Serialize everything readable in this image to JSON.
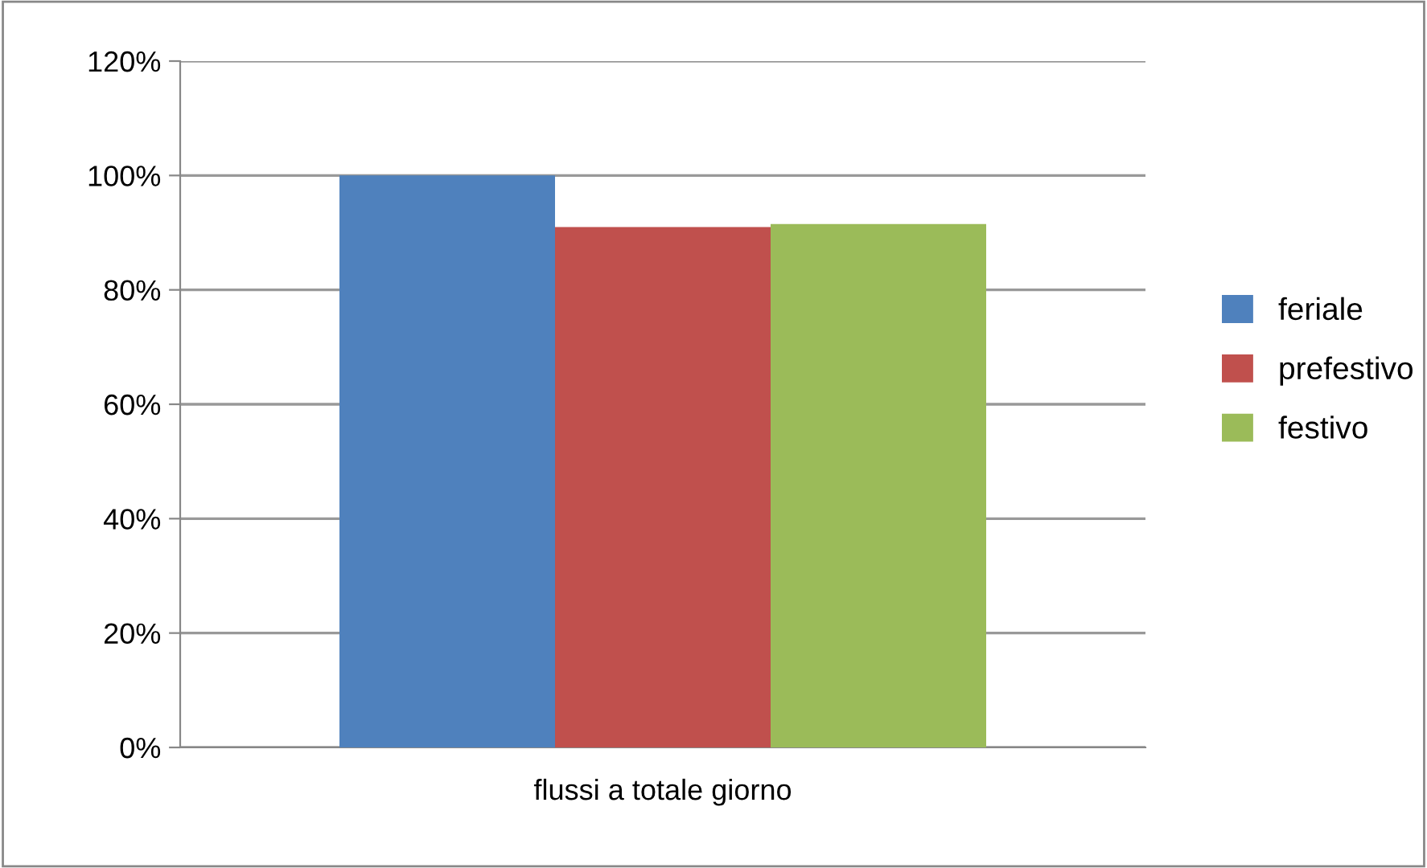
{
  "chart_data": {
    "type": "bar",
    "categories": [
      "flussi a totale giorno"
    ],
    "series": [
      {
        "name": "feriale",
        "color": "#4f81bd",
        "values": [
          100
        ]
      },
      {
        "name": "prefestivo",
        "color": "#c0504d",
        "values": [
          91
        ]
      },
      {
        "name": "festivo",
        "color": "#9bbb59",
        "values": [
          91.5
        ]
      }
    ],
    "ylim": [
      0,
      120
    ],
    "yticks": [
      {
        "value": 0,
        "label": "0%"
      },
      {
        "value": 20,
        "label": "20%"
      },
      {
        "value": 40,
        "label": "40%"
      },
      {
        "value": 60,
        "label": "60%"
      },
      {
        "value": 80,
        "label": "80%"
      },
      {
        "value": 100,
        "label": "100%"
      },
      {
        "value": 120,
        "label": "120%"
      }
    ],
    "grid": "y",
    "legend": "right"
  }
}
